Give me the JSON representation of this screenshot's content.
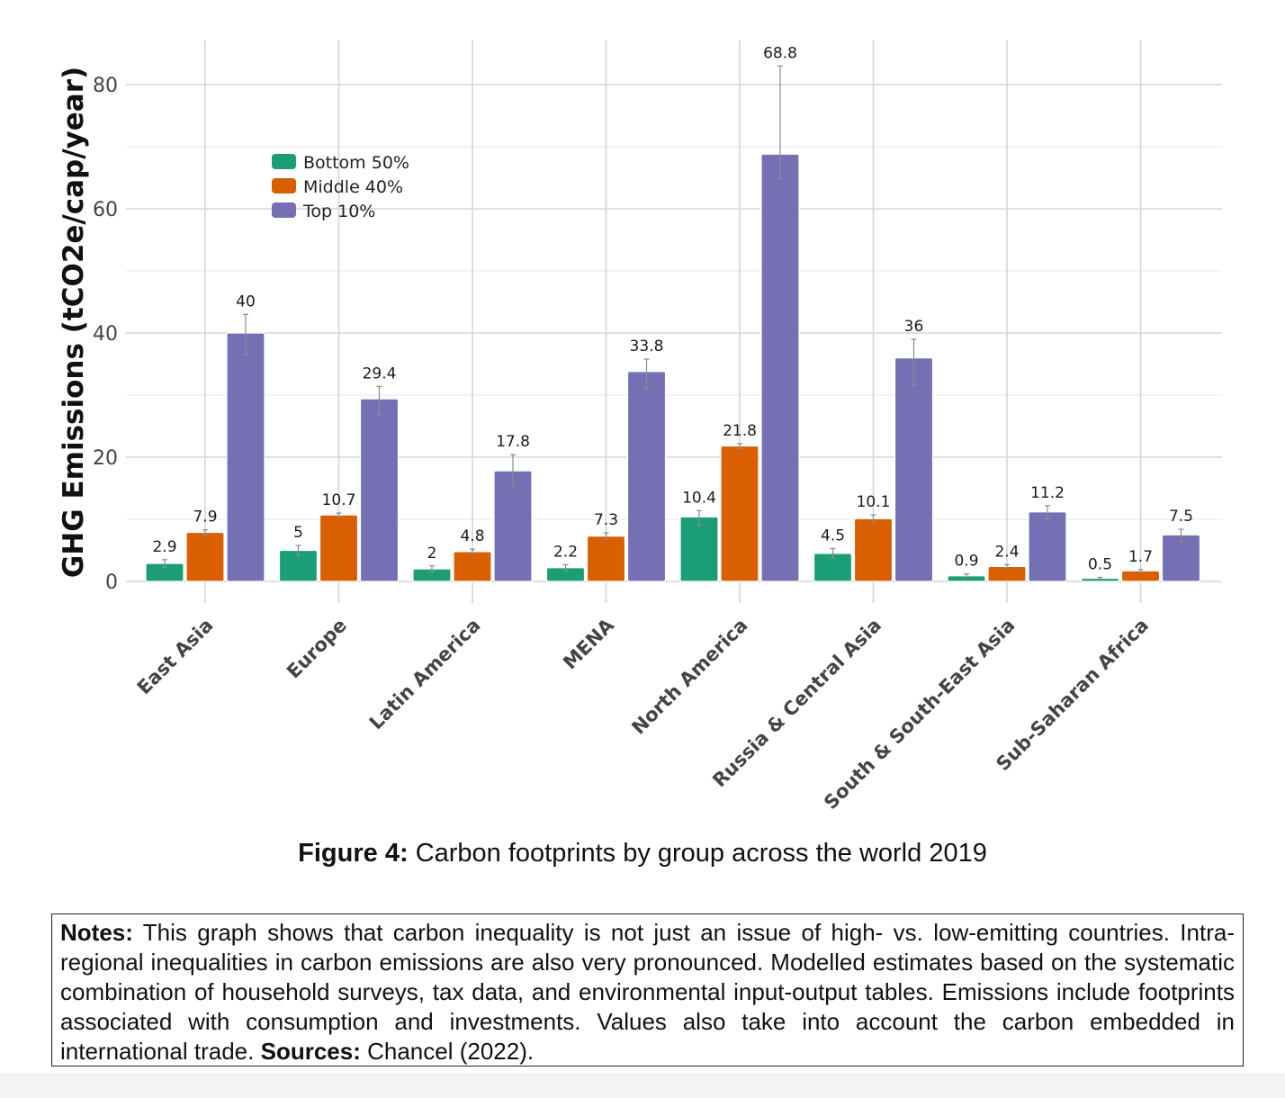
{
  "chart_data": {
    "type": "bar",
    "ylabel": "GHG Emissions (tCO2e/cap/year)",
    "xlabel": "",
    "ylim": [
      0,
      86
    ],
    "yticks": [
      0,
      20,
      40,
      60,
      80
    ],
    "grid": true,
    "legend_position": "top-left",
    "categories": [
      "East Asia",
      "Europe",
      "Latin America",
      "MENA",
      "North America",
      "Russia & Central Asia",
      "South & South-East Asia",
      "Sub-Saharan Africa"
    ],
    "series": [
      {
        "name": "Bottom 50%",
        "color": "#1b9e77",
        "values": [
          2.9,
          5,
          2,
          2.2,
          10.4,
          4.5,
          0.9,
          0.5
        ],
        "labels": [
          "2.9",
          "5",
          "2",
          "2.2",
          "10.4",
          "4.5",
          "0.9",
          "0.5"
        ],
        "error_low": [
          2.3,
          4.2,
          1.5,
          1.7,
          9.0,
          3.7,
          0.7,
          0.35
        ],
        "error_high": [
          3.5,
          5.8,
          2.5,
          2.7,
          11.4,
          5.3,
          1.2,
          0.65
        ]
      },
      {
        "name": "Middle 40%",
        "color": "#d95f02",
        "values": [
          7.9,
          10.7,
          4.8,
          7.3,
          21.8,
          10.1,
          2.4,
          1.7
        ],
        "labels": [
          "7.9",
          "10.7",
          "4.8",
          "7.3",
          "21.8",
          "10.1",
          "2.4",
          "1.7"
        ],
        "error_low": [
          7.5,
          10.4,
          4.4,
          6.8,
          21.4,
          9.6,
          2.2,
          1.5
        ],
        "error_high": [
          8.3,
          11.0,
          5.2,
          7.8,
          22.2,
          10.7,
          2.7,
          1.9
        ]
      },
      {
        "name": "Top 10%",
        "color": "#7570b3",
        "values": [
          40,
          29.4,
          17.8,
          33.8,
          68.8,
          36,
          11.2,
          7.5
        ],
        "labels": [
          "40",
          "29.4",
          "17.8",
          "33.8",
          "68.8",
          "36",
          "11.2",
          "7.5"
        ],
        "error_low": [
          36.5,
          26.8,
          15.5,
          31.0,
          64.8,
          31.6,
          10.0,
          6.4
        ],
        "error_high": [
          43.0,
          31.4,
          20.4,
          35.8,
          83.0,
          39.0,
          12.2,
          8.4
        ]
      }
    ]
  },
  "caption": {
    "label": "Figure 4:",
    "text": "Carbon footprints by group across the world 2019"
  },
  "notes": {
    "label": "Notes:",
    "text": "This graph shows that carbon inequality is not just an issue of high- vs. low-emitting countries. Intra-regional inequalities in carbon emissions are also very pronounced. Modelled estimates based on the systematic combination of household surveys, tax data, and environmental input-output tables. Emissions include footprints associated with consumption and investments. Values also take into account the carbon embedded in international trade.",
    "sources_label": "Sources:",
    "sources_text": "Chancel (2022)."
  }
}
